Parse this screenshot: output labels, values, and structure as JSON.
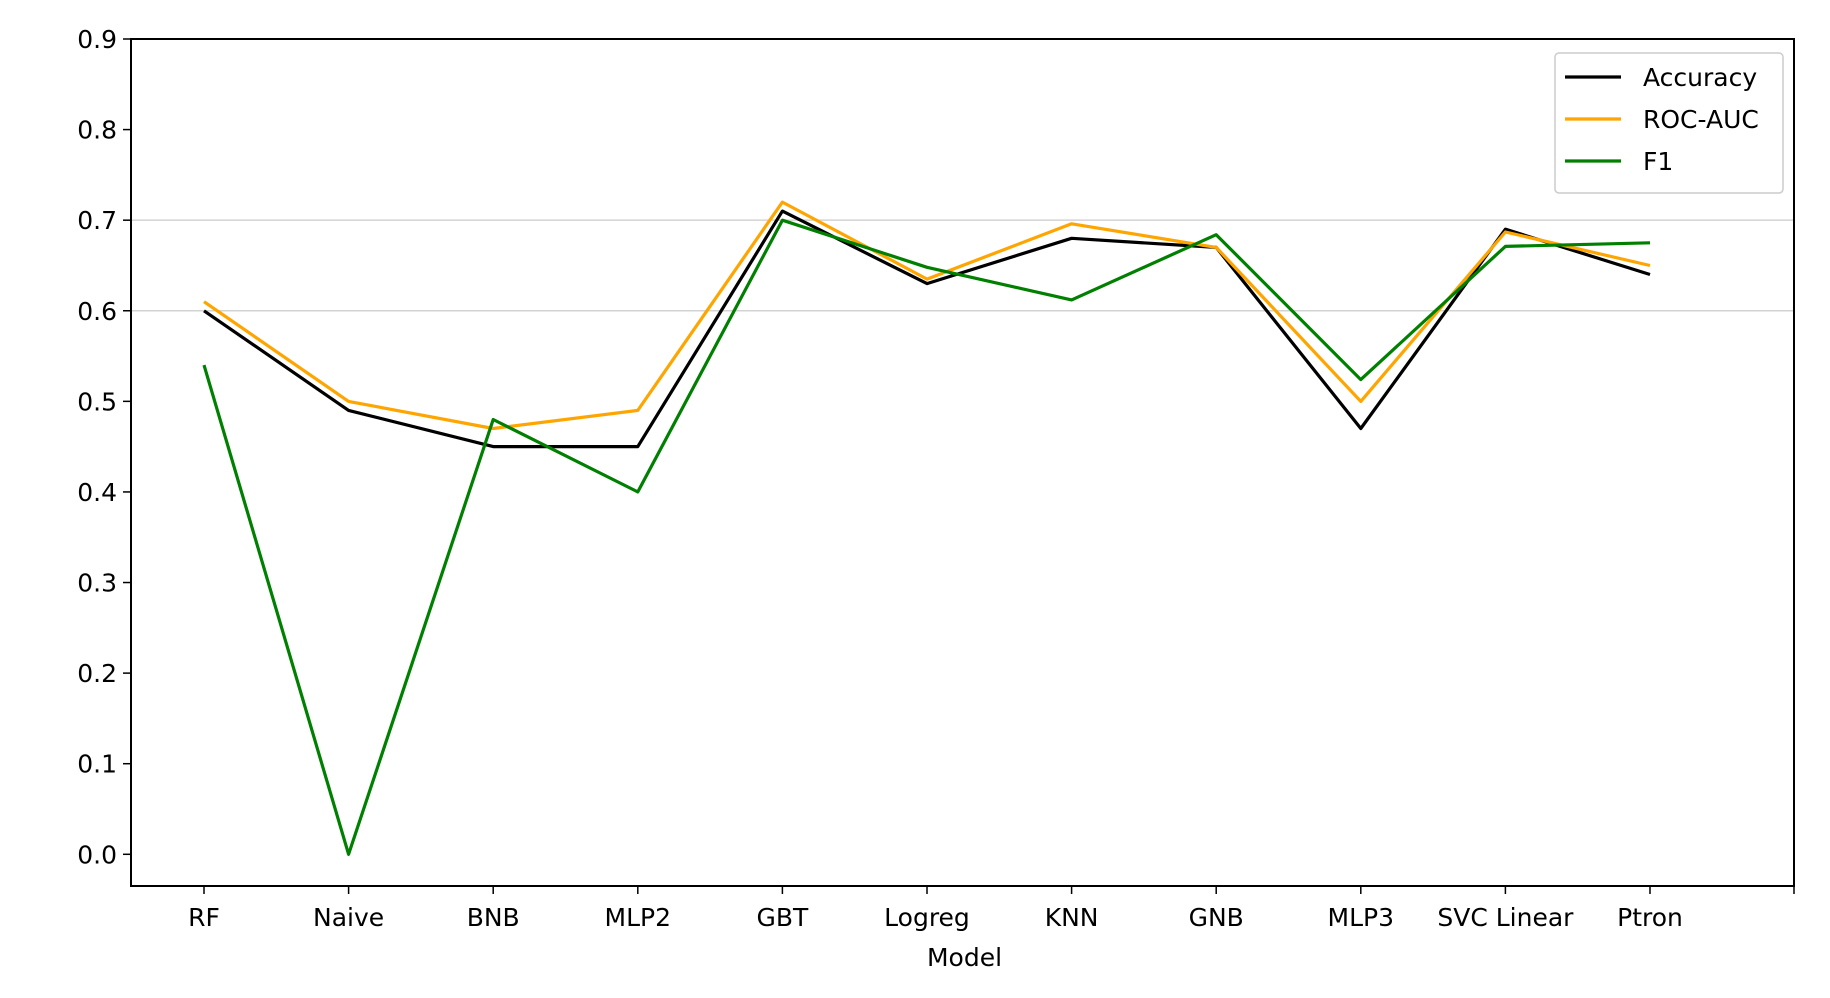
{
  "chart_data": {
    "type": "line",
    "title": "",
    "xlabel": "Model",
    "ylabel": "",
    "categories": [
      "RF",
      "Naive",
      "BNB",
      "MLP2",
      "GBT",
      "Logreg",
      "KNN",
      "GNB",
      "MLP3",
      "SVC Linear",
      "Ptron"
    ],
    "ylim": [
      -0.035,
      0.9
    ],
    "yticks": [
      "0.0",
      "0.1",
      "0.2",
      "0.3",
      "0.4",
      "0.5",
      "0.6",
      "0.7",
      "0.8",
      "0.9"
    ],
    "ytick_values": [
      0.0,
      0.1,
      0.2,
      0.3,
      0.4,
      0.5,
      0.6,
      0.7,
      0.8,
      0.9
    ],
    "grid_lines_y": [
      0.6,
      0.7
    ],
    "legend_position": "top-right",
    "series": [
      {
        "name": "Accuracy",
        "color": "#000000",
        "values": [
          0.6,
          0.49,
          0.45,
          0.45,
          0.71,
          0.63,
          0.68,
          0.67,
          0.47,
          0.69,
          0.64
        ]
      },
      {
        "name": "ROC-AUC",
        "color": "#ffa500",
        "values": [
          0.61,
          0.5,
          0.47,
          0.49,
          0.72,
          0.635,
          0.696,
          0.67,
          0.5,
          0.687,
          0.65
        ]
      },
      {
        "name": "F1",
        "color": "#008000",
        "values": [
          0.54,
          0.0,
          0.48,
          0.4,
          0.7,
          0.648,
          0.612,
          0.684,
          0.524,
          0.671,
          0.675
        ]
      }
    ]
  }
}
